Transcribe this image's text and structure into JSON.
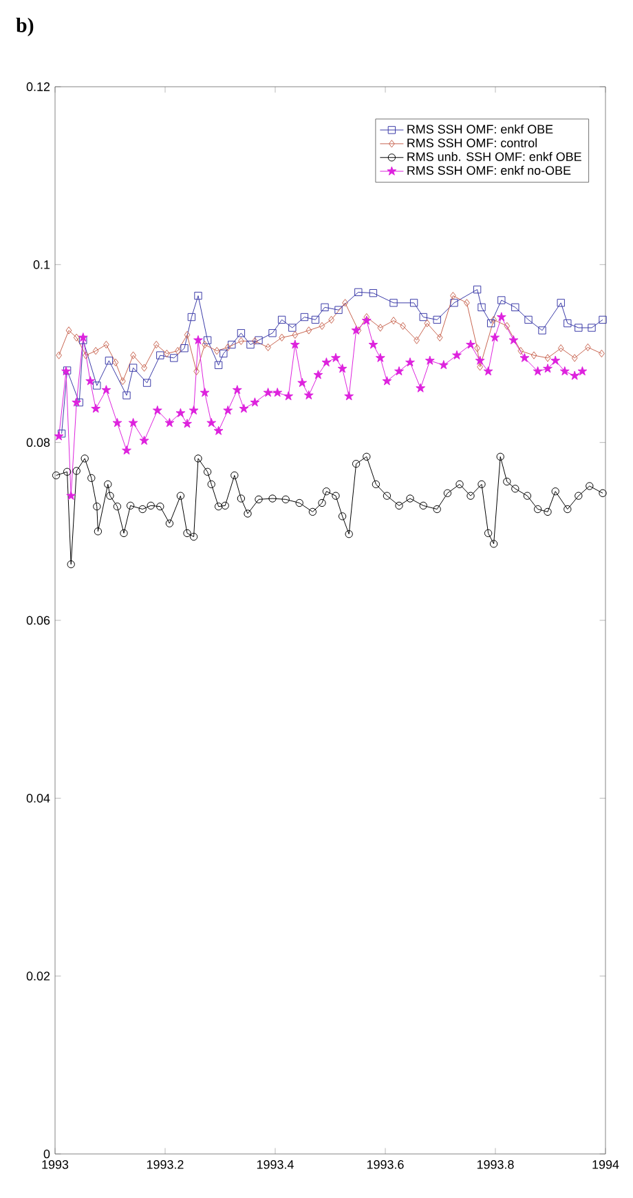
{
  "chart_data": {
    "type": "line",
    "title": "b)",
    "xlim": [
      1993,
      1994
    ],
    "xticks": [
      1993,
      1993.2,
      1993.4,
      1993.6,
      1993.8,
      1994
    ],
    "ylim": [
      0,
      0.12
    ],
    "yticks": [
      0,
      0.02,
      0.04,
      0.06,
      0.08,
      0.1,
      0.12
    ],
    "grid": false,
    "legend": "top right",
    "line_style": "solid",
    "series": [
      {
        "name": "RMS SSH OMF: enkf OBE",
        "color": "#3a3aa8",
        "marker": "square",
        "x": [
          1993.012,
          1993.022,
          1993.044,
          1993.051,
          1993.076,
          1993.098,
          1993.13,
          1993.142,
          1993.167,
          1993.191,
          1993.216,
          1993.235,
          1993.248,
          1993.26,
          1993.277,
          1993.297,
          1993.306,
          1993.321,
          1993.338,
          1993.355,
          1993.37,
          1993.395,
          1993.412,
          1993.431,
          1993.453,
          1993.473,
          1993.49,
          1993.515,
          1993.551,
          1993.578,
          1993.615,
          1993.652,
          1993.669,
          1993.694,
          1993.725,
          1993.767,
          1993.775,
          1993.792,
          1993.811,
          1993.836,
          1993.86,
          1993.885,
          1993.919,
          1993.931,
          1993.951,
          1993.975,
          1993.995
        ],
        "values": [
          0.081,
          0.0881,
          0.0845,
          0.0915,
          0.0864,
          0.0892,
          0.0853,
          0.0884,
          0.0867,
          0.0898,
          0.0895,
          0.0906,
          0.0941,
          0.0965,
          0.0915,
          0.0887,
          0.09,
          0.091,
          0.0923,
          0.091,
          0.0915,
          0.0923,
          0.0938,
          0.0929,
          0.0941,
          0.0938,
          0.0952,
          0.0949,
          0.0969,
          0.0968,
          0.0957,
          0.0957,
          0.0941,
          0.0938,
          0.0957,
          0.0972,
          0.0952,
          0.0934,
          0.096,
          0.0952,
          0.0938,
          0.0926,
          0.0957,
          0.0934,
          0.0929,
          0.0929,
          0.0938
        ]
      },
      {
        "name": "RMS SSH OMF: control",
        "color": "#c86450",
        "marker": "diamond",
        "x": [
          1993.007,
          1993.025,
          1993.039,
          1993.056,
          1993.074,
          1993.093,
          1993.11,
          1993.123,
          1993.142,
          1993.162,
          1993.184,
          1993.203,
          1993.223,
          1993.24,
          1993.257,
          1993.272,
          1993.294,
          1993.314,
          1993.338,
          1993.363,
          1993.387,
          1993.412,
          1993.436,
          1993.461,
          1993.485,
          1993.502,
          1993.527,
          1993.551,
          1993.566,
          1993.591,
          1993.615,
          1993.632,
          1993.657,
          1993.676,
          1993.699,
          1993.723,
          1993.748,
          1993.767,
          1993.772,
          1993.797,
          1993.821,
          1993.846,
          1993.87,
          1993.895,
          1993.919,
          1993.944,
          1993.968,
          1993.993
        ],
        "values": [
          0.0898,
          0.0926,
          0.0918,
          0.0898,
          0.0903,
          0.091,
          0.089,
          0.0869,
          0.0898,
          0.0884,
          0.091,
          0.09,
          0.0903,
          0.0921,
          0.088,
          0.091,
          0.0903,
          0.0907,
          0.0914,
          0.0914,
          0.0907,
          0.0918,
          0.0921,
          0.0926,
          0.0931,
          0.0938,
          0.0957,
          0.0926,
          0.0941,
          0.0929,
          0.0937,
          0.0931,
          0.0915,
          0.0934,
          0.0918,
          0.0965,
          0.0957,
          0.0906,
          0.0885,
          0.0938,
          0.0931,
          0.0903,
          0.0898,
          0.0895,
          0.0906,
          0.0895,
          0.0907,
          0.09
        ]
      },
      {
        "name": "RMS unb. SSH OMF: enkf OBE",
        "color": "#000000",
        "marker": "circle",
        "x": [
          1993.002,
          1993.022,
          1993.029,
          1993.039,
          1993.054,
          1993.066,
          1993.076,
          1993.078,
          1993.096,
          1993.1,
          1993.113,
          1993.125,
          1993.137,
          1993.159,
          1993.174,
          1993.191,
          1993.208,
          1993.228,
          1993.24,
          1993.252,
          1993.26,
          1993.277,
          1993.284,
          1993.297,
          1993.309,
          1993.326,
          1993.338,
          1993.35,
          1993.37,
          1993.395,
          1993.419,
          1993.444,
          1993.468,
          1993.485,
          1993.493,
          1993.51,
          1993.522,
          1993.534,
          1993.547,
          1993.566,
          1993.583,
          1993.603,
          1993.625,
          1993.645,
          1993.669,
          1993.694,
          1993.713,
          1993.735,
          1993.755,
          1993.775,
          1993.787,
          1993.797,
          1993.809,
          1993.821,
          1993.836,
          1993.858,
          1993.877,
          1993.895,
          1993.909,
          1993.931,
          1993.951,
          1993.971,
          1993.995
        ],
        "values": [
          0.0763,
          0.0767,
          0.0663,
          0.0768,
          0.0782,
          0.076,
          0.0728,
          0.07,
          0.0753,
          0.074,
          0.0728,
          0.0698,
          0.0729,
          0.0725,
          0.0729,
          0.0728,
          0.0709,
          0.074,
          0.0698,
          0.0694,
          0.0782,
          0.0767,
          0.0753,
          0.0728,
          0.0729,
          0.0763,
          0.0737,
          0.072,
          0.0736,
          0.0737,
          0.0736,
          0.0732,
          0.0722,
          0.0732,
          0.0745,
          0.074,
          0.0717,
          0.0697,
          0.0776,
          0.0784,
          0.0753,
          0.074,
          0.0729,
          0.0737,
          0.0729,
          0.0725,
          0.0743,
          0.0753,
          0.074,
          0.0753,
          0.0698,
          0.0686,
          0.0784,
          0.0756,
          0.0748,
          0.074,
          0.0725,
          0.0722,
          0.0745,
          0.0725,
          0.074,
          0.0751,
          0.0743
        ]
      },
      {
        "name": "RMS SSH OMF: enkf no-OBE",
        "color": "#dd22dd",
        "marker": "star",
        "x": [
          1993.007,
          1993.02,
          1993.029,
          1993.039,
          1993.051,
          1993.064,
          1993.074,
          1993.093,
          1993.113,
          1993.13,
          1993.142,
          1993.162,
          1993.186,
          1993.208,
          1993.228,
          1993.24,
          1993.252,
          1993.26,
          1993.272,
          1993.284,
          1993.297,
          1993.314,
          1993.331,
          1993.343,
          1993.363,
          1993.387,
          1993.404,
          1993.424,
          1993.436,
          1993.449,
          1993.461,
          1993.478,
          1993.493,
          1993.51,
          1993.522,
          1993.534,
          1993.547,
          1993.566,
          1993.578,
          1993.591,
          1993.603,
          1993.625,
          1993.645,
          1993.664,
          1993.681,
          1993.706,
          1993.73,
          1993.755,
          1993.772,
          1993.787,
          1993.799,
          1993.811,
          1993.833,
          1993.853,
          1993.877,
          1993.895,
          1993.909,
          1993.926,
          1993.944,
          1993.958
        ],
        "values": [
          0.0807,
          0.088,
          0.074,
          0.0845,
          0.0918,
          0.0869,
          0.0838,
          0.0859,
          0.0822,
          0.0791,
          0.0822,
          0.0802,
          0.0836,
          0.0822,
          0.0833,
          0.0821,
          0.0836,
          0.0915,
          0.0856,
          0.0822,
          0.0813,
          0.0836,
          0.0859,
          0.0838,
          0.0845,
          0.0856,
          0.0856,
          0.0852,
          0.091,
          0.0867,
          0.0853,
          0.0876,
          0.089,
          0.0895,
          0.0883,
          0.0852,
          0.0926,
          0.0937,
          0.091,
          0.0895,
          0.0869,
          0.088,
          0.089,
          0.0861,
          0.0892,
          0.0887,
          0.0898,
          0.091,
          0.0892,
          0.088,
          0.0918,
          0.0941,
          0.0915,
          0.0895,
          0.088,
          0.0883,
          0.0892,
          0.088,
          0.0875,
          0.088
        ]
      }
    ]
  }
}
